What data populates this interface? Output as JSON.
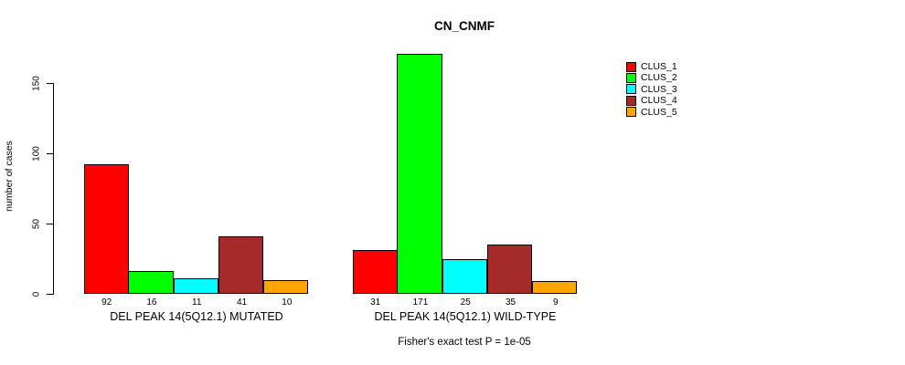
{
  "chart_data": {
    "type": "bar",
    "title": "CN_CNMF",
    "ylabel": "number of cases",
    "xlabel": "",
    "ylim": [
      0,
      175
    ],
    "yticks": [
      0,
      50,
      100,
      150
    ],
    "grid": false,
    "legend_position": "right",
    "bar_value_labels": true,
    "categories": [
      "DEL PEAK 14(5Q12.1) MUTATED",
      "DEL PEAK 14(5Q12.1) WILD-TYPE"
    ],
    "series": [
      {
        "name": "CLUS_1",
        "color": "#FF0000",
        "values": [
          92,
          31
        ]
      },
      {
        "name": "CLUS_2",
        "color": "#00FF00",
        "values": [
          16,
          171
        ]
      },
      {
        "name": "CLUS_3",
        "color": "#00FFFF",
        "values": [
          11,
          25
        ]
      },
      {
        "name": "CLUS_4",
        "color": "#A52A2A",
        "values": [
          41,
          35
        ]
      },
      {
        "name": "CLUS_5",
        "color": "#FFA500",
        "values": [
          10,
          9
        ]
      }
    ],
    "annotation": "Fisher's exact test P = 1e-05"
  }
}
